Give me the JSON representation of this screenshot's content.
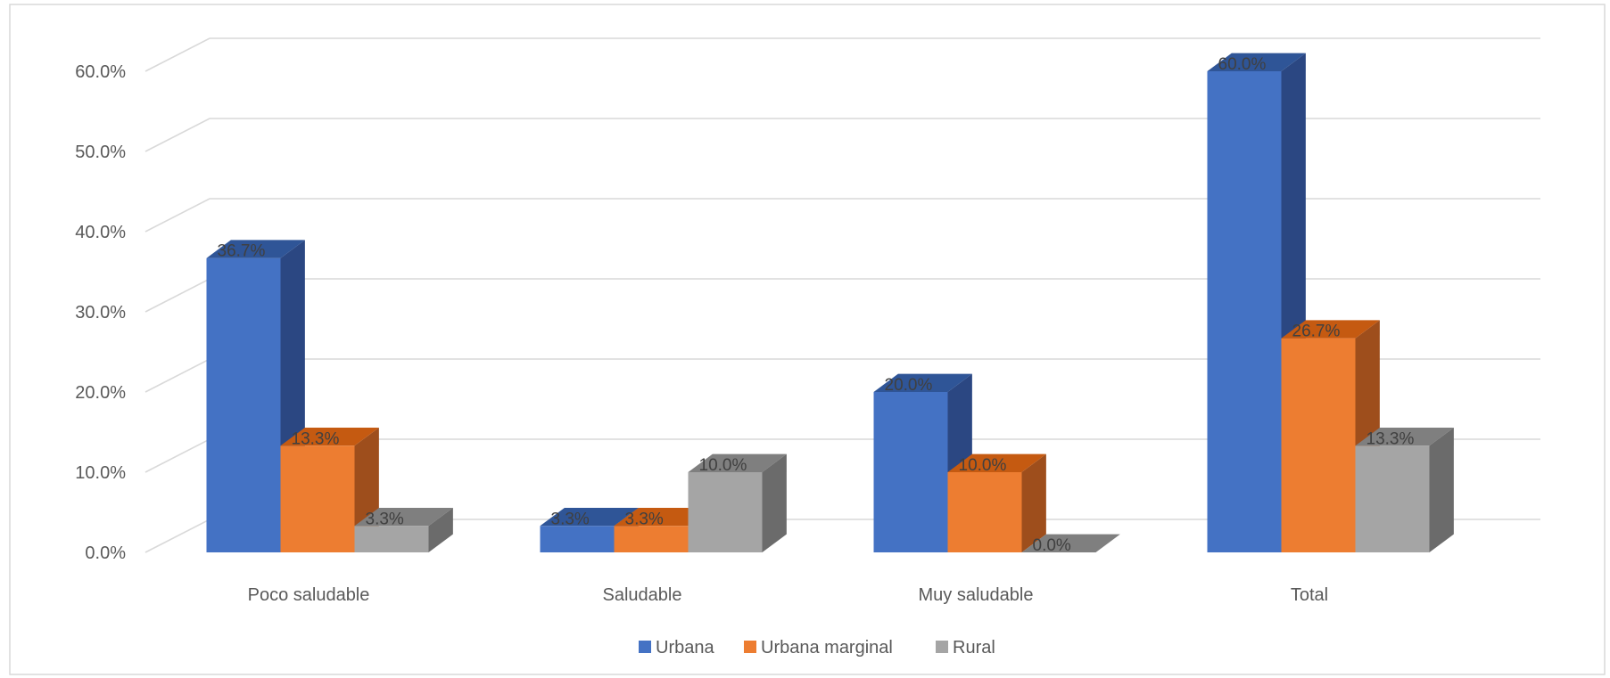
{
  "chart_data": {
    "type": "bar",
    "title": "",
    "xlabel": "",
    "ylabel": "",
    "categories": [
      "Poco saludable",
      "Saludable",
      "Muy saludable",
      "Total"
    ],
    "series": [
      {
        "name": "Urbana",
        "values": [
          36.7,
          3.3,
          20.0,
          60.0
        ],
        "labels": [
          "36.7%",
          "3.3%",
          "20.0%",
          "60.0%"
        ],
        "color": "#4472C4",
        "side": "#2B4782",
        "top": "#2F5597"
      },
      {
        "name": "Urbana marginal",
        "values": [
          13.3,
          3.3,
          10.0,
          26.7
        ],
        "labels": [
          "13.3%",
          "3.3%",
          "10.0%",
          "26.7%"
        ],
        "color": "#ED7D31",
        "side": "#9E4E1C",
        "top": "#C55A11"
      },
      {
        "name": "Rural",
        "values": [
          3.3,
          10.0,
          0.0,
          13.3
        ],
        "labels": [
          "3.3%",
          "10.0%",
          "0.0%",
          "13.3%"
        ],
        "color": "#A5A5A5",
        "side": "#6B6B6B",
        "top": "#7F7F7F"
      }
    ],
    "ylim": [
      0,
      60
    ],
    "yticks": [
      "0.0%",
      "10.0%",
      "20.0%",
      "30.0%",
      "40.0%",
      "50.0%",
      "60.0%"
    ],
    "grid": true,
    "legend": "bottom",
    "projection": "3d-clustered"
  }
}
